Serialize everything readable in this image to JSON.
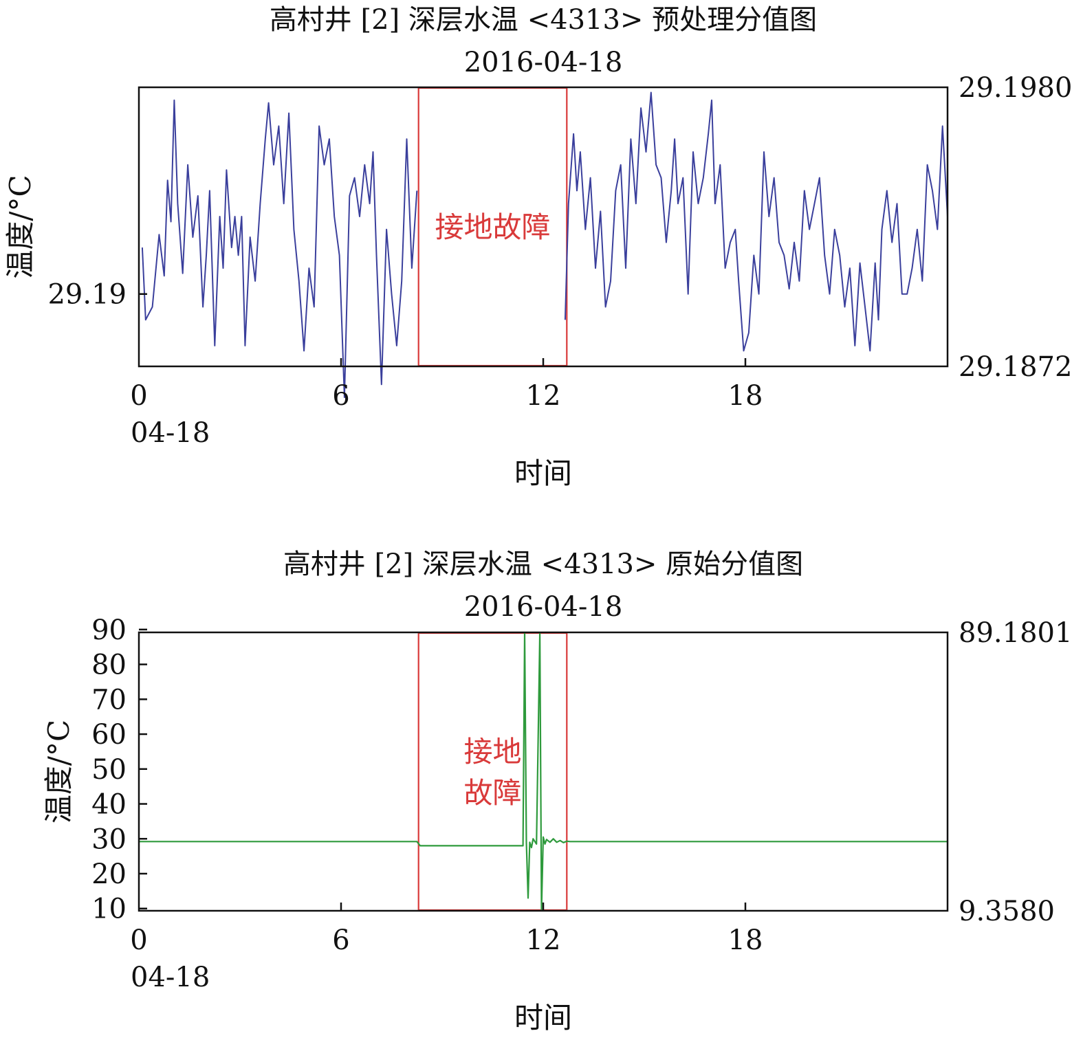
{
  "chart_data": [
    {
      "type": "line",
      "title": "高村井 [2] 深层水温 <4313> 预处理分值图",
      "subtitle": "2016-04-18",
      "xlabel": "时间",
      "ylabel": "温度/°C",
      "x_ticks": [
        "0",
        "6",
        "12",
        "18"
      ],
      "x_start_label": "04-18",
      "xlim": [
        0,
        24
      ],
      "ylim": [
        29.1872,
        29.198
      ],
      "y_ticks": [
        "29.19"
      ],
      "right_axis_labels": {
        "max": "29.1980",
        "min": "29.1872"
      },
      "grid": false,
      "line_color": "#3a3f9c",
      "annotation": {
        "text": "接地故障",
        "x_range": [
          8.3,
          12.7
        ],
        "color": "#d93a3a"
      },
      "series": [
        {
          "x": [
            0.1,
            0.2,
            0.4,
            0.6,
            0.75,
            0.85,
            0.95,
            1.05,
            1.15,
            1.3,
            1.45,
            1.6,
            1.75,
            1.9,
            2.0,
            2.1,
            2.25,
            2.4,
            2.5,
            2.6,
            2.75,
            2.85,
            2.95,
            3.05,
            3.15,
            3.3,
            3.45,
            3.6,
            3.75,
            3.85,
            4.0,
            4.15,
            4.3,
            4.45,
            4.6,
            4.75,
            4.9,
            5.05,
            5.2,
            5.35,
            5.5,
            5.65,
            5.8,
            5.95,
            6.1,
            6.25,
            6.4,
            6.55,
            6.7,
            6.85,
            6.95,
            7.05,
            7.2,
            7.35,
            7.5,
            7.65,
            7.8,
            7.95,
            8.1,
            8.25,
            12.65,
            12.75,
            12.9,
            13.0,
            13.1,
            13.25,
            13.4,
            13.55,
            13.7,
            13.85,
            14.0,
            14.15,
            14.3,
            14.45,
            14.6,
            14.75,
            14.9,
            15.05,
            15.2,
            15.35,
            15.5,
            15.65,
            15.8,
            15.9,
            16.0,
            16.15,
            16.3,
            16.45,
            16.6,
            16.75,
            16.9,
            17.0,
            17.1,
            17.25,
            17.4,
            17.55,
            17.7,
            17.8,
            17.95,
            18.1,
            18.25,
            18.4,
            18.55,
            18.7,
            18.85,
            19.0,
            19.15,
            19.3,
            19.45,
            19.6,
            19.75,
            19.9,
            20.05,
            20.2,
            20.35,
            20.5,
            20.65,
            20.8,
            20.95,
            21.1,
            21.25,
            21.4,
            21.55,
            21.7,
            21.85,
            21.95,
            22.05,
            22.2,
            22.35,
            22.5,
            22.65,
            22.8,
            22.95,
            23.1,
            23.25,
            23.4,
            23.55,
            23.7,
            23.85,
            24.0
          ],
          "values": [
            29.1918,
            29.189,
            29.1895,
            29.1923,
            29.1907,
            29.1944,
            29.1928,
            29.1975,
            29.1935,
            29.1908,
            29.195,
            29.1922,
            29.1938,
            29.1895,
            29.1915,
            29.194,
            29.188,
            29.193,
            29.191,
            29.1948,
            29.1918,
            29.193,
            29.1915,
            29.193,
            29.188,
            29.1922,
            29.1905,
            29.1935,
            29.196,
            29.1974,
            29.195,
            29.1965,
            29.1935,
            29.197,
            29.1925,
            29.1905,
            29.1878,
            29.191,
            29.1895,
            29.1965,
            29.195,
            29.196,
            29.193,
            29.1915,
            29.186,
            29.1938,
            29.1945,
            29.193,
            29.195,
            29.1935,
            29.1955,
            29.1915,
            29.1865,
            29.1925,
            29.19,
            29.188,
            29.1905,
            29.196,
            29.191,
            29.194,
            29.189,
            29.1935,
            29.1962,
            29.194,
            29.1955,
            29.1925,
            29.1945,
            29.191,
            29.1932,
            29.1895,
            29.1905,
            29.194,
            29.195,
            29.191,
            29.196,
            29.1935,
            29.1972,
            29.1955,
            29.1978,
            29.195,
            29.1945,
            29.192,
            29.194,
            29.196,
            29.1935,
            29.1945,
            29.19,
            29.1955,
            29.1935,
            29.1945,
            29.1962,
            29.1975,
            29.1935,
            29.195,
            29.191,
            29.192,
            29.1925,
            29.1905,
            29.1878,
            29.1885,
            29.1915,
            29.19,
            29.1955,
            29.193,
            29.1945,
            29.192,
            29.1915,
            29.1902,
            29.192,
            29.1905,
            29.194,
            29.1925,
            29.1935,
            29.1945,
            29.1915,
            29.19,
            29.1925,
            29.1915,
            29.1895,
            29.191,
            29.188,
            29.1912,
            29.1895,
            29.1878,
            29.1912,
            29.189,
            29.1925,
            29.194,
            29.192,
            29.1935,
            29.19,
            29.19,
            29.191,
            29.1925,
            29.1905,
            29.195,
            29.194,
            29.1925,
            29.1965,
            29.193
          ]
        }
      ]
    },
    {
      "type": "line",
      "title": "高村井 [2] 深层水温 <4313> 原始分值图",
      "subtitle": "2016-04-18",
      "xlabel": "时间",
      "ylabel": "温度/°C",
      "x_ticks": [
        "0",
        "6",
        "12",
        "18"
      ],
      "x_start_label": "04-18",
      "xlim": [
        0,
        24
      ],
      "ylim": [
        9.358,
        89.1801
      ],
      "y_ticks": [
        "10",
        "20",
        "30",
        "40",
        "50",
        "60",
        "70",
        "80",
        "90"
      ],
      "right_axis_labels": {
        "max": "89.1801",
        "min": "9.3580"
      },
      "grid": false,
      "line_color": "#2e9a3c",
      "annotation": {
        "text_lines": [
          "接地",
          "故障"
        ],
        "x_range": [
          8.3,
          12.7
        ],
        "color": "#d93a3a"
      },
      "series": [
        {
          "x": [
            0.0,
            8.25,
            8.35,
            11.4,
            11.45,
            11.5,
            11.55,
            11.6,
            11.65,
            11.7,
            11.8,
            11.9,
            11.95,
            12.0,
            12.05,
            12.1,
            12.2,
            12.3,
            12.4,
            12.5,
            12.6,
            12.7,
            12.8,
            24.0
          ],
          "values": [
            29.2,
            29.2,
            28.0,
            28.0,
            89.0,
            29.0,
            13.0,
            29.0,
            27.5,
            30.0,
            28.5,
            89.0,
            9.5,
            30.5,
            28.5,
            29.8,
            29.0,
            30.0,
            29.0,
            29.5,
            28.9,
            29.3,
            29.2,
            29.2
          ]
        }
      ]
    }
  ]
}
